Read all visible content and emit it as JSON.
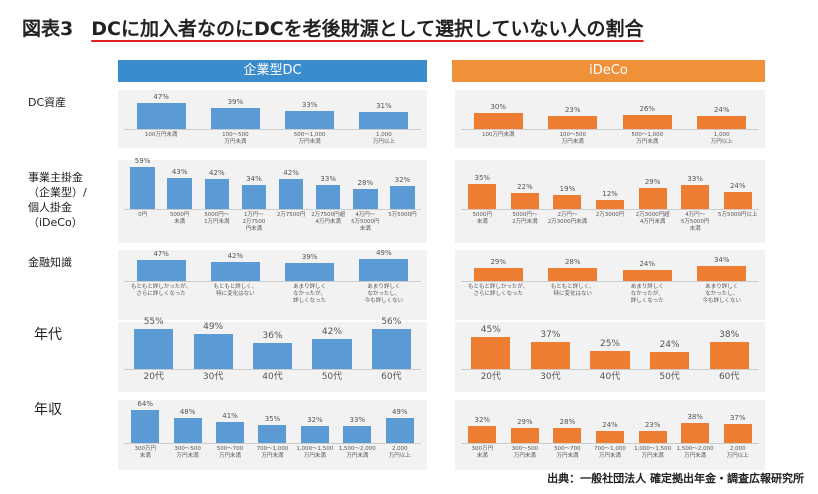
{
  "title": {
    "prefix": "図表3",
    "main": "DCに加入者なのにDCを老後財源として選択していない人の割合"
  },
  "headers": {
    "dc": "企業型DC",
    "ideco": "iDeCo"
  },
  "colors": {
    "dc": "#5b9bd5",
    "ideco": "#ed7d31"
  },
  "source": "出典：一般社団法人 確定拠出年金・調査広報研究所",
  "chart_data": [
    {
      "type": "bar",
      "row": "DC資産",
      "series": "企業型DC",
      "categories": [
        "100万円未満",
        "100～500\n万円未満",
        "500～1,000\n万円未満",
        "1,000\n万円以上"
      ],
      "values": [
        47,
        39,
        33,
        31
      ],
      "unit": "%"
    },
    {
      "type": "bar",
      "row": "DC資産",
      "series": "iDeCo",
      "categories": [
        "100万円未満",
        "100～500\n万円未満",
        "500～1,000\n万円未満",
        "1,000\n万円以上"
      ],
      "values": [
        30,
        23,
        26,
        24
      ],
      "unit": "%"
    },
    {
      "type": "bar",
      "row": "事業主掛金\n（企業型）/\n個人掛金\n（iDeCo）",
      "series": "企業型DC",
      "categories": [
        "0円",
        "5000円\n未満",
        "5000円～\n1万円未満",
        "1万円～\n2万7500\n円未満",
        "2万7500円",
        "2万7500円超\n4万円未満",
        "4万円～\n5万5000円\n未満",
        "5万5000円"
      ],
      "values": [
        59,
        43,
        42,
        34,
        42,
        33,
        28,
        32
      ],
      "unit": "%"
    },
    {
      "type": "bar",
      "row": "事業主掛金\n（企業型）/\n個人掛金\n（iDeCo）",
      "series": "iDeCo",
      "categories": [
        "5000円\n未満",
        "5000円～\n2万円未満",
        "2万円～\n2万3000円未満",
        "2万3000円",
        "2万3000円超\n4万円未満",
        "4万円～\n5万5000円\n未満",
        "5万5000円以上"
      ],
      "values": [
        35,
        22,
        19,
        12,
        29,
        33,
        24
      ],
      "unit": "%"
    },
    {
      "type": "bar",
      "row": "金融知識",
      "series": "企業型DC",
      "categories": [
        "もともと詳しかったが、\nさらに詳しくなった",
        "もともと詳しく、\n特に変化はない",
        "あまり詳しく\nなかったが、\n詳しくなった",
        "あまり詳しく\nなかったし、\n今も詳しくない"
      ],
      "values": [
        47,
        42,
        39,
        49
      ],
      "unit": "%"
    },
    {
      "type": "bar",
      "row": "金融知識",
      "series": "iDeCo",
      "categories": [
        "もともと詳しかったが、\nさらに詳しくなった",
        "もともと詳しく、\n特に変化はない",
        "あまり詳しく\nなかったが、\n詳しくなった",
        "あまり詳しく\nなかったし、\n今も詳しくない"
      ],
      "values": [
        29,
        28,
        24,
        34
      ],
      "unit": "%"
    },
    {
      "type": "bar",
      "row": "年代",
      "series": "企業型DC",
      "categories": [
        "20代",
        "30代",
        "40代",
        "50代",
        "60代"
      ],
      "values": [
        55,
        49,
        36,
        42,
        56
      ],
      "unit": "%"
    },
    {
      "type": "bar",
      "row": "年代",
      "series": "iDeCo",
      "categories": [
        "20代",
        "30代",
        "40代",
        "50代",
        "60代"
      ],
      "values": [
        45,
        37,
        25,
        24,
        38
      ],
      "unit": "%"
    },
    {
      "type": "bar",
      "row": "年収",
      "series": "企業型DC",
      "categories": [
        "300万円\n未満",
        "300～500\n万円未満",
        "500～700\n万円未満",
        "700～1,000\n万円未満",
        "1,000～1,500\n万円未満",
        "1,500～2,000\n万円未満",
        "2,000\n万円以上"
      ],
      "values": [
        64,
        48,
        41,
        35,
        32,
        33,
        49
      ],
      "unit": "%"
    },
    {
      "type": "bar",
      "row": "年収",
      "series": "iDeCo",
      "categories": [
        "300万円\n未満",
        "300～500\n万円未満",
        "500～700\n万円未満",
        "700～1,000\n万円未満",
        "1,000～1,500\n万円未満",
        "1,500～2,000\n万円未満",
        "2,000\n万円以上"
      ],
      "values": [
        32,
        29,
        28,
        24,
        23,
        38,
        37
      ],
      "unit": "%"
    }
  ]
}
